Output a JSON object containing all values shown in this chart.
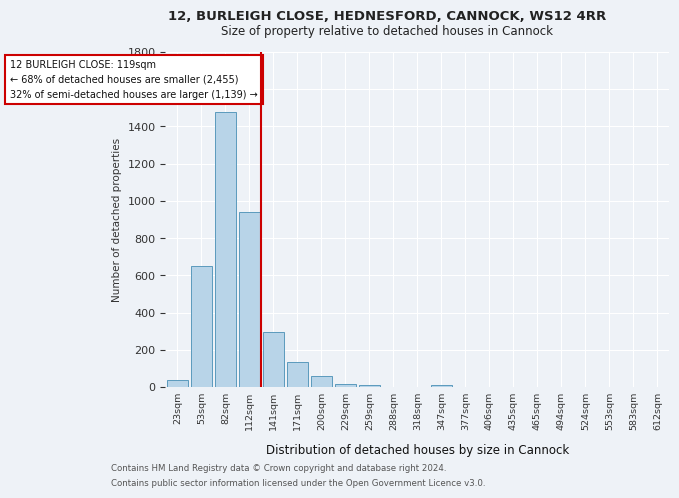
{
  "title_line1": "12, BURLEIGH CLOSE, HEDNESFORD, CANNOCK, WS12 4RR",
  "title_line2": "Size of property relative to detached houses in Cannock",
  "xlabel": "Distribution of detached houses by size in Cannock",
  "ylabel": "Number of detached properties",
  "bins": [
    "23sqm",
    "53sqm",
    "82sqm",
    "112sqm",
    "141sqm",
    "171sqm",
    "200sqm",
    "229sqm",
    "259sqm",
    "288sqm",
    "318sqm",
    "347sqm",
    "377sqm",
    "406sqm",
    "435sqm",
    "465sqm",
    "494sqm",
    "524sqm",
    "553sqm",
    "583sqm",
    "612sqm"
  ],
  "values": [
    40,
    650,
    1480,
    940,
    295,
    135,
    60,
    18,
    12,
    0,
    0,
    12,
    0,
    0,
    0,
    0,
    0,
    0,
    0,
    0,
    0
  ],
  "bar_color": "#b8d4e8",
  "bar_edge_color": "#5b9abd",
  "annotation_title": "12 BURLEIGH CLOSE: 119sqm",
  "annotation_line2": "← 68% of detached houses are smaller (2,455)",
  "annotation_line3": "32% of semi-detached houses are larger (1,139) →",
  "annotation_box_color": "#ffffff",
  "annotation_box_edge": "#cc0000",
  "vline_color": "#cc0000",
  "footer1": "Contains HM Land Registry data © Crown copyright and database right 2024.",
  "footer2": "Contains public sector information licensed under the Open Government Licence v3.0.",
  "ylim": [
    0,
    1800
  ],
  "background_color": "#eef2f7",
  "grid_color": "#ffffff"
}
